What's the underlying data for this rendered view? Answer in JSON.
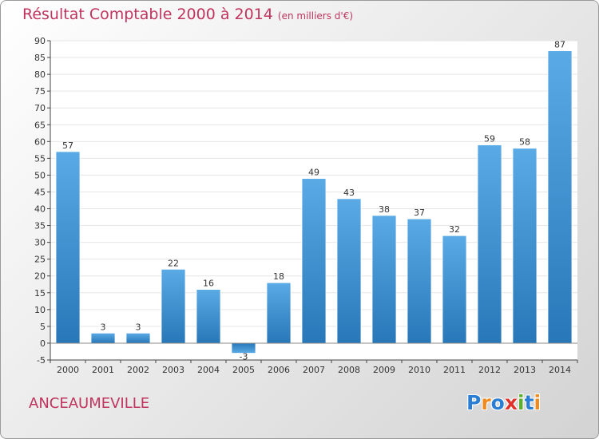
{
  "header": {
    "title": "Résultat Comptable 2000 à 2014",
    "subtitle": "(en milliers d'€)"
  },
  "footer": {
    "commune": "ANCEAUMEVILLE",
    "brand": "Proxiti",
    "brand_letters": [
      {
        "char": "P",
        "color": "#2a7fd4"
      },
      {
        "char": "r",
        "color": "#f08a1c"
      },
      {
        "char": "o",
        "color": "#2a7fd4"
      },
      {
        "char": "x",
        "color": "#e0322a"
      },
      {
        "char": "i",
        "color": "#5cae2e"
      },
      {
        "char": "t",
        "color": "#2a7fd4"
      },
      {
        "char": "i",
        "color": "#f08a1c"
      }
    ]
  },
  "colors": {
    "title": "#c0345f",
    "bar_light": "#5aaae6",
    "bar_dark": "#2877b8",
    "axis": "#444444",
    "grid": "#e6e6e6"
  },
  "chart_data": {
    "type": "bar",
    "categories": [
      "2000",
      "2001",
      "2002",
      "2003",
      "2004",
      "2005",
      "2006",
      "2007",
      "2008",
      "2009",
      "2010",
      "2011",
      "2012",
      "2013",
      "2014"
    ],
    "values": [
      57,
      3,
      3,
      22,
      16,
      -3,
      18,
      49,
      43,
      38,
      37,
      32,
      59,
      58,
      87
    ],
    "data_labels": [
      "57",
      "3",
      "3",
      "22",
      "16",
      "-3",
      "18",
      "49",
      "43",
      "38",
      "37",
      "32",
      "59",
      "58",
      "87"
    ],
    "title": "Résultat Comptable 2000 à 2014",
    "subtitle": "(en milliers d'€)",
    "xlabel": "",
    "ylabel": "",
    "ylim": [
      -5,
      90
    ],
    "yticks": [
      -5,
      0,
      5,
      10,
      15,
      20,
      25,
      30,
      35,
      40,
      45,
      50,
      55,
      60,
      65,
      70,
      75,
      80,
      85,
      90
    ],
    "grid": true
  }
}
